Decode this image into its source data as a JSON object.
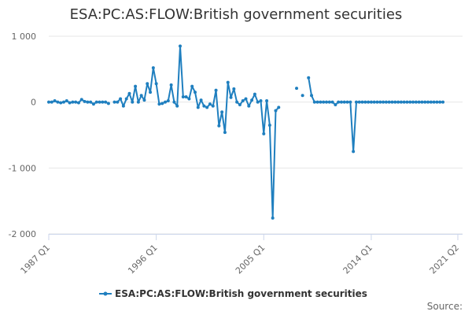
{
  "chart_data": {
    "type": "line",
    "title": "ESA:PC:AS:FLOW:British government securities",
    "xlabel": "",
    "ylabel": "",
    "x_ticks": [
      "1987 Q1",
      "1996 Q1",
      "2005 Q1",
      "2014 Q1",
      "2021 Q2"
    ],
    "x_tick_index": [
      0,
      36,
      72,
      108,
      137
    ],
    "y_ticks": [
      1000,
      0,
      -1000,
      -2000
    ],
    "y_tick_labels": [
      "1 000",
      "0",
      "-1 000",
      "-2 000"
    ],
    "ylim": [
      -2000,
      1000
    ],
    "grid": "horizontal",
    "legend_position": "bottom-center",
    "series": [
      {
        "name": "ESA:PC:AS:FLOW:British government securities",
        "color": "#1f7fbf",
        "x_start": "1987 Q1",
        "frequency": "quarterly",
        "values": [
          0,
          0,
          20,
          0,
          -10,
          0,
          20,
          -10,
          0,
          0,
          -10,
          40,
          10,
          0,
          0,
          -30,
          0,
          0,
          0,
          0,
          -20,
          null,
          0,
          0,
          50,
          -60,
          50,
          130,
          0,
          240,
          0,
          100,
          30,
          280,
          150,
          520,
          280,
          -30,
          -20,
          0,
          20,
          260,
          0,
          -60,
          850,
          80,
          80,
          50,
          240,
          150,
          -80,
          30,
          -60,
          -80,
          -30,
          -60,
          180,
          -360,
          -150,
          -460,
          300,
          70,
          200,
          0,
          -40,
          20,
          50,
          -60,
          30,
          120,
          0,
          20,
          -480,
          20,
          -350,
          -1760,
          -130,
          -80,
          null,
          null,
          null,
          null,
          null,
          210,
          null,
          100,
          null,
          370,
          100,
          0,
          0,
          0,
          0,
          0,
          0,
          0,
          -40,
          0,
          0,
          0,
          0,
          0,
          -750,
          0,
          0,
          0,
          0,
          0,
          0,
          0,
          0,
          0,
          0,
          0,
          0,
          0,
          0,
          0,
          0,
          0,
          0,
          0,
          0,
          0,
          0,
          0,
          0,
          0,
          0,
          0,
          0,
          0,
          0
        ]
      }
    ]
  },
  "credits": "Source:"
}
